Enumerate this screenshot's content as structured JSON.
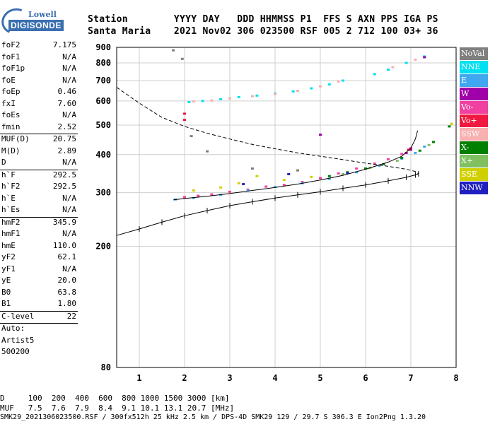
{
  "logo": {
    "line1": "Lowell",
    "line2": "DIGISONDE"
  },
  "header": {
    "line1": "Station        YYYY DAY   DDD HHMMSS P1  FFS S AXN PPS IGA PS",
    "line2": "Santa Maria    2021 Nov02 306 023500 RSF 005 2 712 100 03+ 36"
  },
  "params": [
    {
      "k": "foF2",
      "v": "7.175"
    },
    {
      "k": "foF1",
      "v": "N/A"
    },
    {
      "k": "foF1p",
      "v": "N/A"
    },
    {
      "k": "foE",
      "v": "N/A"
    },
    {
      "k": "foEp",
      "v": "0.46"
    },
    {
      "k": "fxI",
      "v": "7.60"
    },
    {
      "k": "foEs",
      "v": "N/A"
    },
    {
      "k": "fmin",
      "v": "2.52"
    },
    {
      "sep": true
    },
    {
      "k": "MUF(D)",
      "v": "20.75"
    },
    {
      "k": "M(D)",
      "v": "2.89"
    },
    {
      "k": "D",
      "v": "N/A"
    },
    {
      "sep": true
    },
    {
      "k": "h`F",
      "v": "292.5"
    },
    {
      "k": "h`F2",
      "v": "292.5"
    },
    {
      "k": "h`E",
      "v": "N/A"
    },
    {
      "k": "h`Es",
      "v": "N/A"
    },
    {
      "sep": true
    },
    {
      "k": "hmF2",
      "v": "345.9"
    },
    {
      "k": "hmF1",
      "v": "N/A"
    },
    {
      "k": "hmE",
      "v": "110.0"
    },
    {
      "k": "yF2",
      "v": "62.1"
    },
    {
      "k": "yF1",
      "v": "N/A"
    },
    {
      "k": "yE",
      "v": "20.0"
    },
    {
      "k": "B0",
      "v": "63.8"
    },
    {
      "k": "B1",
      "v": "1.80"
    },
    {
      "sep": true
    },
    {
      "k": "C-level",
      "v": "22"
    },
    {
      "sep": true
    },
    {
      "k": "Auto:",
      "v": ""
    },
    {
      "k": "Artist5",
      "v": ""
    },
    {
      "k": "500200",
      "v": ""
    }
  ],
  "footer": {
    "line1": "D     100  200  400  600  800 1000 1500 3000 [km]",
    "line2": "MUF   7.5  7.6  7.9  8.4  9.1 10.1 13.1 20.7 [MHz]",
    "line3": "SMK29_2021306023500.RSF / 300fx512h 25 kHz 2.5 km / DPS-4D SMK29 129 / 29.7 S 306.3 E Ion2Png 1.3.20"
  },
  "legend": [
    {
      "label": "NoVal",
      "color": "#7f7f7f"
    },
    {
      "label": "NNE",
      "color": "#00e0f0"
    },
    {
      "label": "E",
      "color": "#40a8f0"
    },
    {
      "label": "W",
      "color": "#a000a8"
    },
    {
      "label": "Vo-",
      "color": "#f040a0"
    },
    {
      "label": "Vo+",
      "color": "#f01840"
    },
    {
      "label": "SSW",
      "color": "#f8b0b0"
    },
    {
      "label": "X-",
      "color": "#008000"
    },
    {
      "label": "X+",
      "color": "#80c060"
    },
    {
      "label": "SSE",
      "color": "#d0d000"
    },
    {
      "label": "NNW",
      "color": "#2020c0"
    }
  ],
  "chart_data": {
    "type": "scatter",
    "xlabel": "",
    "ylabel": "",
    "xlim": [
      0.5,
      8.0
    ],
    "ylim": [
      80,
      900
    ],
    "y_scale": "log",
    "xticks": [
      1,
      2,
      3,
      4,
      5,
      6,
      7,
      8
    ],
    "yticks": [
      80,
      200,
      300,
      400,
      500,
      600,
      700,
      800,
      900
    ],
    "grid": true,
    "series": [
      {
        "name": "Vo-",
        "color": "#f040a0",
        "points": [
          [
            2.0,
            290
          ],
          [
            2.3,
            293
          ],
          [
            2.6,
            296
          ],
          [
            3.0,
            302
          ],
          [
            3.4,
            307
          ],
          [
            3.8,
            314
          ],
          [
            4.2,
            318
          ],
          [
            4.6,
            325
          ],
          [
            5.0,
            335
          ],
          [
            5.4,
            347
          ],
          [
            5.8,
            360
          ],
          [
            6.2,
            374
          ],
          [
            6.5,
            386
          ],
          [
            6.8,
            402
          ],
          [
            7.0,
            420
          ]
        ]
      },
      {
        "name": "E",
        "color": "#40a8f0",
        "points": [
          [
            1.8,
            285
          ],
          [
            2.2,
            288
          ],
          [
            2.8,
            295
          ],
          [
            3.4,
            305
          ],
          [
            4.0,
            313
          ],
          [
            4.6,
            322
          ],
          [
            5.2,
            333
          ],
          [
            5.8,
            350
          ],
          [
            6.3,
            368
          ],
          [
            6.8,
            388
          ],
          [
            7.1,
            405
          ],
          [
            7.3,
            425
          ]
        ]
      },
      {
        "name": "NNE",
        "color": "#00e0f0",
        "points": [
          [
            2.1,
            595
          ],
          [
            2.4,
            600
          ],
          [
            2.8,
            608
          ],
          [
            3.2,
            618
          ],
          [
            3.6,
            625
          ],
          [
            4.0,
            635
          ],
          [
            4.4,
            645
          ],
          [
            4.8,
            660
          ],
          [
            5.2,
            680
          ],
          [
            5.5,
            700
          ],
          [
            6.2,
            735
          ],
          [
            6.5,
            760
          ],
          [
            6.9,
            800
          ],
          [
            7.3,
            840
          ]
        ]
      },
      {
        "name": "SSW",
        "color": "#f8b0b0",
        "points": [
          [
            2.2,
            598
          ],
          [
            2.6,
            602
          ],
          [
            3.0,
            612
          ],
          [
            3.5,
            622
          ],
          [
            4.0,
            632
          ],
          [
            4.5,
            648
          ],
          [
            5.0,
            670
          ],
          [
            5.4,
            695
          ],
          [
            6.6,
            775
          ],
          [
            7.1,
            820
          ]
        ]
      },
      {
        "name": "X-",
        "color": "#008000",
        "points": [
          [
            5.2,
            340
          ],
          [
            5.6,
            350
          ],
          [
            6.0,
            360
          ],
          [
            6.4,
            372
          ],
          [
            6.8,
            390
          ],
          [
            7.2,
            412
          ],
          [
            7.5,
            440
          ],
          [
            7.85,
            495
          ]
        ]
      },
      {
        "name": "W",
        "color": "#a000a8",
        "points": [
          [
            6.9,
            405
          ],
          [
            7.0,
            415
          ],
          [
            7.3,
            835
          ],
          [
            5.0,
            465
          ]
        ]
      },
      {
        "name": "NoVal",
        "color": "#7f7f7f",
        "points": [
          [
            1.75,
            880
          ],
          [
            1.95,
            825
          ],
          [
            2.15,
            460
          ],
          [
            2.5,
            410
          ],
          [
            3.5,
            360
          ],
          [
            4.5,
            355
          ]
        ]
      },
      {
        "name": "SSE",
        "color": "#d0d000",
        "points": [
          [
            2.2,
            305
          ],
          [
            2.8,
            312
          ],
          [
            3.2,
            322
          ],
          [
            3.6,
            340
          ],
          [
            4.2,
            330
          ],
          [
            4.8,
            338
          ],
          [
            7.9,
            505
          ]
        ]
      },
      {
        "name": "X+",
        "color": "#80c060",
        "points": [
          [
            5.5,
            345
          ],
          [
            6.1,
            362
          ],
          [
            6.7,
            382
          ],
          [
            7.4,
            430
          ]
        ]
      },
      {
        "name": "Vo+",
        "color": "#f01840",
        "points": [
          [
            2.0,
            545
          ],
          [
            2.0,
            520
          ],
          [
            6.95,
            415
          ]
        ]
      },
      {
        "name": "NNW",
        "color": "#2020c0",
        "points": [
          [
            4.3,
            345
          ],
          [
            5.6,
            348
          ],
          [
            3.3,
            320
          ]
        ]
      }
    ],
    "trace": [
      [
        1.75,
        284
      ],
      [
        2.0,
        287
      ],
      [
        2.5,
        292
      ],
      [
        3.0,
        298
      ],
      [
        3.5,
        305
      ],
      [
        4.0,
        312
      ],
      [
        4.5,
        320
      ],
      [
        5.0,
        330
      ],
      [
        5.5,
        342
      ],
      [
        6.0,
        358
      ],
      [
        6.5,
        378
      ],
      [
        6.8,
        395
      ],
      [
        7.0,
        420
      ],
      [
        7.1,
        450
      ],
      [
        7.15,
        480
      ]
    ],
    "profile_dashed": [
      [
        0.5,
        665
      ],
      [
        1.0,
        590
      ],
      [
        1.5,
        530
      ],
      [
        2.0,
        495
      ],
      [
        2.5,
        470
      ],
      [
        3.0,
        450
      ],
      [
        3.5,
        432
      ],
      [
        4.0,
        418
      ],
      [
        4.5,
        405
      ],
      [
        5.0,
        395
      ],
      [
        5.5,
        385
      ],
      [
        6.0,
        375
      ],
      [
        6.5,
        366
      ],
      [
        6.9,
        358
      ],
      [
        7.1,
        352
      ],
      [
        7.17,
        346
      ]
    ],
    "profile_solid": [
      [
        0.5,
        217
      ],
      [
        1.0,
        228
      ],
      [
        1.5,
        240
      ],
      [
        2.0,
        252
      ],
      [
        2.5,
        262
      ],
      [
        3.0,
        272
      ],
      [
        3.5,
        280
      ],
      [
        4.0,
        288
      ],
      [
        4.5,
        295
      ],
      [
        5.0,
        302
      ],
      [
        5.5,
        310
      ],
      [
        6.0,
        318
      ],
      [
        6.5,
        328
      ],
      [
        6.9,
        337
      ],
      [
        7.1,
        343
      ],
      [
        7.17,
        346
      ]
    ]
  }
}
